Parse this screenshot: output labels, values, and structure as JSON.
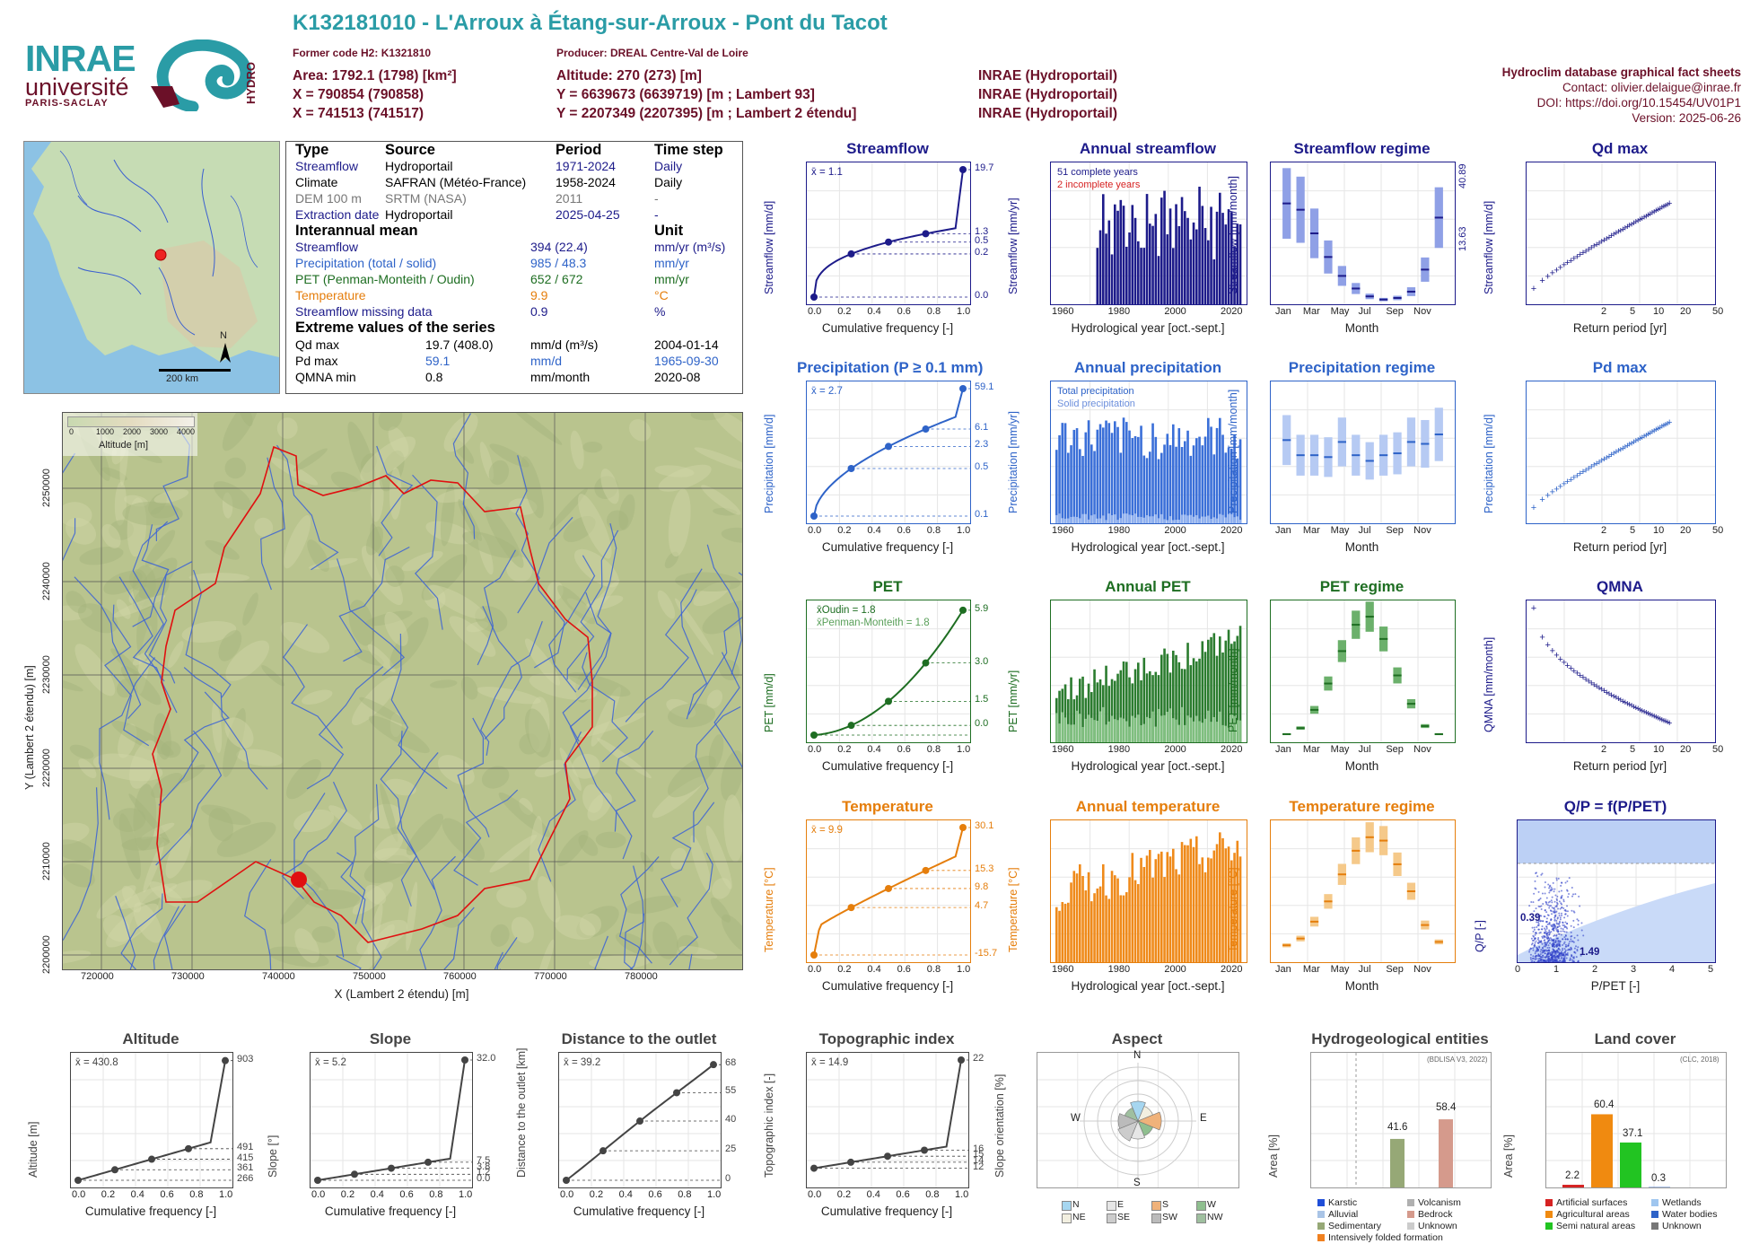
{
  "header": {
    "title": "K132181010 - L'Arroux à Étang-sur-Arroux - Pont du Tacot",
    "former_code": "Former code H2: K1321810",
    "producer": "Producer: DREAL Centre-Val de Loire",
    "area": "Area: 1792.1 (1798) [km²]",
    "x_l93": "X = 790854 (790858)",
    "x_l2": "X = 741513 (741517)",
    "altitude": "Altitude: 270 (273) [m]",
    "y_l93": "Y = 6639673 (6639719) [m ; Lambert 93]",
    "y_l2": "Y = 2207349 (2207395) [m ; Lambert 2 étendu]",
    "src1": "INRAE (Hydroportail)",
    "src2": "INRAE (Hydroportail)",
    "src3": "INRAE (Hydroportail)"
  },
  "right_info": {
    "title": "Hydroclim database graphical fact sheets",
    "contact": "Contact: olivier.delaigue@inrae.fr",
    "doi": "DOI: https://doi.org/10.15454/UV01P1",
    "version": "Version: 2025-06-26"
  },
  "logo": {
    "inrae": "INRAE",
    "universite": "université",
    "paris": "PARIS-SACLAY",
    "hydro": "HYDRO"
  },
  "inset_map": {
    "scale": "200 km",
    "north": "N"
  },
  "info": {
    "h_type": "Type",
    "h_source": "Source",
    "h_period": "Period",
    "h_step": "Time step",
    "rows": [
      {
        "type": "Streamflow",
        "source": "Hydroportail",
        "period": "1971-2024",
        "step": "Daily",
        "color": "#1d1b8a"
      },
      {
        "type": "Climate",
        "source": "SAFRAN (Météo-France)",
        "period": "1958-2024",
        "step": "Daily",
        "color": "#000000"
      },
      {
        "type": "DEM 100 m",
        "source": "SRTM (NASA)",
        "period": "2011",
        "step": "-",
        "color": "#777777"
      },
      {
        "type": "Extraction date",
        "source": "Hydroportail",
        "period": "2025-04-25",
        "step": "-",
        "color": "#1d1b8a"
      }
    ],
    "interannual": "Interannual mean",
    "unit": "Unit",
    "means": [
      {
        "name": "Streamflow",
        "value": "394 (22.4)",
        "unit": "mm/yr (m³/s)",
        "color": "#1d1b8a"
      },
      {
        "name": "Precipitation (total / solid)",
        "value": "985 / 48.3",
        "unit": "mm/yr",
        "color": "#2e63c8"
      },
      {
        "name": "PET (Penman-Monteith / Oudin)",
        "value": "652 / 672",
        "unit": "mm/yr",
        "color": "#1e6e22"
      },
      {
        "name": "Temperature",
        "value": "9.9",
        "unit": "°C",
        "color": "#e57e0c"
      },
      {
        "name": "Streamflow missing data",
        "value": "0.9",
        "unit": "%",
        "color": "#1d1b8a"
      }
    ],
    "extreme": "Extreme values of the series",
    "extremes": [
      {
        "name": "Qd max",
        "value": "19.7 (408.0)",
        "unit": "mm/d (m³/s)",
        "date": "2004-01-14",
        "color": "#1d1b8a"
      },
      {
        "name": "Pd max",
        "value": "59.1",
        "unit": "mm/d",
        "date": "1965-09-30",
        "color": "#2e63c8"
      },
      {
        "name": "QMNA min",
        "value": "0.8",
        "unit": "mm/month",
        "date": "2020-08",
        "color": "#1d1b8a"
      }
    ]
  },
  "bigmap": {
    "xlabel": "X (Lambert 2 étendu) [m]",
    "ylabel": "Y (Lambert 2 étendu) [m]",
    "xticks": [
      "720000",
      "730000",
      "740000",
      "750000",
      "760000",
      "770000",
      "780000"
    ],
    "yticks": [
      "2250000",
      "2240000",
      "2230000",
      "2220000",
      "2210000",
      "2200000"
    ],
    "legend_title": "Altitude [m]",
    "legend_ticks": [
      "0",
      "1000",
      "2000",
      "3000",
      "4000"
    ]
  },
  "panels": {
    "streamflow": {
      "title": "Streamflow",
      "mean": "x̄ = 1.1",
      "ylabel": "Streamflow [mm/d]",
      "xlabel": "Cumulative frequency [-]",
      "right": [
        "19.7",
        "1.3",
        "0.5",
        "0.2",
        "0.0"
      ]
    },
    "annual_streamflow": {
      "title": "Annual streamflow",
      "ylabel": "Streamflow [mm/yr]",
      "xlabel": "Hydrological year [oct.-sept.]",
      "legend1": "51 complete years",
      "legend2": "2 incomplete years"
    },
    "streamflow_regime": {
      "title": "Streamflow regime",
      "ylabel": "Streamflow [mm/month]",
      "xlabel": "Month",
      "right": [
        "40.89",
        "13.63"
      ]
    },
    "qd_max": {
      "title": "Qd max",
      "ylabel": "Streamflow [mm/d]",
      "xlabel": "Return period [yr]"
    },
    "precipitation": {
      "title": "Precipitation (P ≥ 0.1 mm)",
      "mean": "x̄ = 2.7",
      "ylabel": "Precipitation [mm/d]",
      "xlabel": "Cumulative frequency [-]",
      "right": [
        "59.1",
        "6.1",
        "2.3",
        "0.5",
        "0.1"
      ]
    },
    "annual_precip": {
      "title": "Annual precipitation",
      "ylabel": "Precipitation [mm/yr]",
      "xlabel": "Hydrological year [oct.-sept.]",
      "legend1": "Total precipitation",
      "legend2": "Solid precipitation"
    },
    "precip_regime": {
      "title": "Precipitation regime",
      "ylabel": "Precipitation [mm/month]",
      "xlabel": "Month"
    },
    "pd_max": {
      "title": "Pd max",
      "ylabel": "Precipitation [mm/d]",
      "xlabel": "Return period [yr]"
    },
    "pet": {
      "title": "PET",
      "mean1": "x̄Oudin = 1.8",
      "mean2": "x̄Penman-Monteith = 1.8",
      "ylabel": "PET [mm/d]",
      "xlabel": "Cumulative frequency [-]",
      "right": [
        "5.9",
        "3.0",
        "1.5",
        "0.0"
      ]
    },
    "annual_pet": {
      "title": "Annual PET",
      "ylabel": "PET [mm/yr]",
      "xlabel": "Hydrological year [oct.-sept.]"
    },
    "pet_regime": {
      "title": "PET regime",
      "ylabel": "PET [mm/month]",
      "xlabel": "Month"
    },
    "qmna": {
      "title": "QMNA",
      "ylabel": "QMNA [mm/month]",
      "xlabel": "Return period [yr]"
    },
    "temperature": {
      "title": "Temperature",
      "mean": "x̄ = 9.9",
      "ylabel": "Temperature [°C]",
      "xlabel": "Cumulative frequency [-]",
      "right": [
        "30.1",
        "15.3",
        "9.8",
        "4.7",
        "-15.7"
      ]
    },
    "annual_temp": {
      "title": "Annual temperature",
      "ylabel": "Temperature [°C]",
      "xlabel": "Hydrological year [oct.-sept.]"
    },
    "temp_regime": {
      "title": "Temperature regime",
      "ylabel": "Temperature [°C]",
      "xlabel": "Month"
    },
    "qp": {
      "title": "Q/P = f(P/PET)",
      "ylabel": "Q/P [-]",
      "xlabel": "P/PET [-]",
      "v1": "0.39",
      "v2": "1.49"
    },
    "altitude": {
      "title": "Altitude",
      "mean": "x̄ = 430.8",
      "ylabel": "Altitude [m]",
      "xlabel": "Cumulative frequency [-]",
      "right": [
        "903",
        "491",
        "415",
        "361",
        "266"
      ]
    },
    "slope": {
      "title": "Slope",
      "mean": "x̄ = 5.2",
      "ylabel": "Slope [°]",
      "xlabel": "Cumulative frequency [-]",
      "right": [
        "32.0",
        "7.5",
        "3.8",
        "1.2",
        "0.0"
      ]
    },
    "distance": {
      "title": "Distance to the outlet",
      "mean": "x̄ = 39.2",
      "ylabel": "Distance to the outlet [km]",
      "xlabel": "Cumulative frequency [-]",
      "right": [
        "68",
        "55",
        "40",
        "25",
        "0"
      ]
    },
    "topo": {
      "title": "Topographic index",
      "mean": "x̄ = 14.9",
      "ylabel": "Topographic index [-]",
      "xlabel": "Cumulative frequency [-]",
      "right": [
        "22",
        "16",
        "15",
        "14",
        "12"
      ]
    },
    "aspect": {
      "title": "Aspect",
      "ylabel": "Slope orientation [%]",
      "N": "N",
      "E": "E",
      "S": "S",
      "W": "W",
      "legend": [
        "N",
        "E",
        "S",
        "W",
        "NE",
        "SE",
        "SW",
        "NW"
      ]
    },
    "hydrogeo": {
      "title": "Hydrogeological entities",
      "ylabel": "Area [%]",
      "note": "(BDLISA V3, 2022)",
      "v1": "41.6",
      "v2": "58.4",
      "legend": [
        "Karstic",
        "Volcanism",
        "Alluvial",
        "Bedrock",
        "Sedimentary",
        "Unknown",
        "Intensively folded formation"
      ]
    },
    "landcover": {
      "title": "Land cover",
      "ylabel": "Area [%]",
      "note": "(CLC, 2018)",
      "vals": [
        "2.2",
        "60.4",
        "37.1",
        "0.3"
      ],
      "legend": [
        "Artificial surfaces",
        "Wetlands",
        "Agricultural areas",
        "Water bodies",
        "Semi natural areas",
        "Unknown"
      ]
    }
  },
  "chart_data": [
    {
      "type": "line",
      "title": "Streamflow",
      "xlabel": "Cumulative frequency [-]",
      "ylabel": "Streamflow [mm/d]",
      "x": [
        0,
        0.25,
        0.5,
        0.75,
        1
      ],
      "y": [
        0.0,
        0.2,
        0.5,
        1.3,
        19.7
      ]
    },
    {
      "type": "bar",
      "title": "Annual streamflow",
      "xlabel": "Hydrological year [oct.-sept.]",
      "ylabel": "Streamflow [mm/yr]",
      "xlim": [
        1960,
        2024
      ],
      "ylim": [
        0,
        900
      ]
    },
    {
      "type": "bar",
      "title": "Streamflow regime",
      "categories": [
        "Jan",
        "Feb",
        "Mar",
        "Apr",
        "May",
        "Jun",
        "Jul",
        "Aug",
        "Sep",
        "Oct",
        "Nov",
        "Dec"
      ],
      "values": [
        64,
        60,
        45,
        30,
        18,
        10,
        5,
        3,
        4,
        8,
        22,
        55
      ],
      "ylabel": "Streamflow [mm/month]"
    },
    {
      "type": "scatter",
      "title": "Qd max",
      "xlabel": "Return period [yr]",
      "ylabel": "Streamflow [mm/d]"
    },
    {
      "type": "line",
      "title": "Precipitation (P ≥ 0.1 mm)",
      "x": [
        0,
        0.25,
        0.5,
        0.75,
        1
      ],
      "y": [
        0.1,
        0.5,
        2.3,
        6.1,
        59.1
      ]
    },
    {
      "type": "bar",
      "title": "Annual precipitation",
      "ylabel": "Precipitation [mm/yr]",
      "ylim": [
        0,
        1500
      ]
    },
    {
      "type": "bar",
      "title": "Precipitation regime",
      "categories": [
        "Jan",
        "Feb",
        "Mar",
        "Apr",
        "May",
        "Jun",
        "Jul",
        "Aug",
        "Sep",
        "Oct",
        "Nov",
        "Dec"
      ],
      "values": [
        88,
        72,
        72,
        70,
        86,
        72,
        66,
        72,
        74,
        86,
        84,
        94
      ]
    },
    {
      "type": "scatter",
      "title": "Pd max"
    },
    {
      "type": "line",
      "title": "PET",
      "x": [
        0,
        0.25,
        0.5,
        0.75,
        1
      ],
      "y": [
        0.0,
        0.5,
        1.5,
        3.0,
        5.9
      ]
    },
    {
      "type": "bar",
      "title": "Annual PET",
      "ylim": [
        500,
        800
      ]
    },
    {
      "type": "bar",
      "title": "PET regime",
      "categories": [
        "Jan",
        "Feb",
        "Mar",
        "Apr",
        "May",
        "Jun",
        "Jul",
        "Aug",
        "Sep",
        "Oct",
        "Nov",
        "Dec"
      ],
      "values": [
        8,
        14,
        32,
        58,
        90,
        116,
        124,
        102,
        66,
        38,
        16,
        8
      ]
    },
    {
      "type": "scatter",
      "title": "QMNA"
    },
    {
      "type": "line",
      "title": "Temperature",
      "x": [
        0,
        0.25,
        0.5,
        0.75,
        1
      ],
      "y": [
        -15.7,
        4.7,
        9.8,
        15.3,
        30.1
      ]
    },
    {
      "type": "bar",
      "title": "Annual temperature",
      "ylim": [
        8,
        12
      ]
    },
    {
      "type": "bar",
      "title": "Temperature regime",
      "categories": [
        "Jan",
        "Feb",
        "Mar",
        "Apr",
        "May",
        "Jun",
        "Jul",
        "Aug",
        "Sep",
        "Oct",
        "Nov",
        "Dec"
      ],
      "values": [
        2.5,
        3.5,
        6,
        9,
        13,
        16.5,
        18.5,
        18,
        14.5,
        10.5,
        5.5,
        3
      ]
    },
    {
      "type": "scatter",
      "title": "Q/P = f(P/PET)",
      "xlim": [
        0,
        5
      ],
      "ylim": [
        0,
        1.4
      ]
    },
    {
      "type": "line",
      "title": "Altitude",
      "x": [
        0,
        0.25,
        0.5,
        0.75,
        1
      ],
      "y": [
        266,
        361,
        415,
        491,
        903
      ]
    },
    {
      "type": "line",
      "title": "Slope",
      "x": [
        0,
        0.25,
        0.5,
        0.75,
        1
      ],
      "y": [
        0.0,
        1.2,
        3.8,
        7.5,
        32.0
      ]
    },
    {
      "type": "line",
      "title": "Distance to the outlet",
      "x": [
        0,
        0.25,
        0.5,
        0.75,
        1
      ],
      "y": [
        0,
        25,
        40,
        55,
        68
      ]
    },
    {
      "type": "line",
      "title": "Topographic index",
      "x": [
        0,
        0.25,
        0.5,
        0.75,
        1
      ],
      "y": [
        12,
        14,
        15,
        16,
        22
      ]
    },
    {
      "type": "bar",
      "title": "Hydrogeological entities",
      "categories": [
        "Sedimentary",
        "Bedrock"
      ],
      "values": [
        41.6,
        58.4
      ]
    },
    {
      "type": "bar",
      "title": "Land cover",
      "categories": [
        "Artificial surfaces",
        "Agricultural areas",
        "Semi natural areas",
        "Water bodies"
      ],
      "values": [
        2.2,
        60.4,
        37.1,
        0.3
      ]
    }
  ]
}
